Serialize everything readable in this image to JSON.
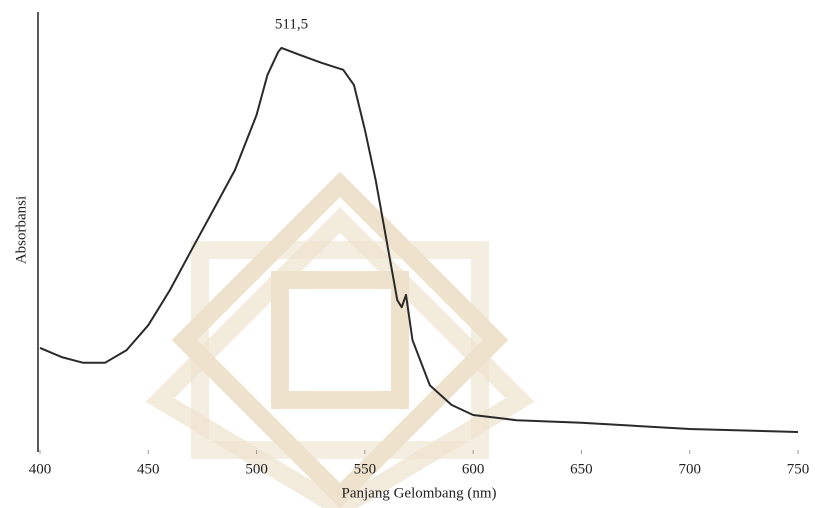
{
  "chart_data": {
    "type": "line",
    "x_label": "Panjang Gelombang (nm)",
    "y_label": "Absorbansi",
    "annotation": "511,5",
    "annotation_x": 511.5,
    "x": [
      400,
      410,
      420,
      430,
      440,
      450,
      460,
      470,
      480,
      490,
      500,
      505,
      510,
      511.5,
      520,
      530,
      540,
      545,
      550,
      555,
      560,
      565,
      567,
      569,
      572,
      580,
      590,
      600,
      620,
      650,
      700,
      750
    ],
    "series": [
      {
        "name": "Absorbansi",
        "color": "#2a2a2a",
        "values": [
          0.233,
          0.212,
          0.199,
          0.199,
          0.228,
          0.285,
          0.365,
          0.457,
          0.548,
          0.639,
          0.765,
          0.856,
          0.909,
          0.918,
          0.902,
          0.884,
          0.868,
          0.833,
          0.731,
          0.616,
          0.479,
          0.342,
          0.326,
          0.354,
          0.251,
          0.148,
          0.103,
          0.08,
          0.068,
          0.062,
          0.048,
          0.041
        ]
      }
    ],
    "xlim": [
      400,
      750
    ],
    "xticks": [
      400,
      450,
      500,
      550,
      600,
      650,
      700,
      750
    ],
    "ylim": [
      0,
      1
    ]
  }
}
